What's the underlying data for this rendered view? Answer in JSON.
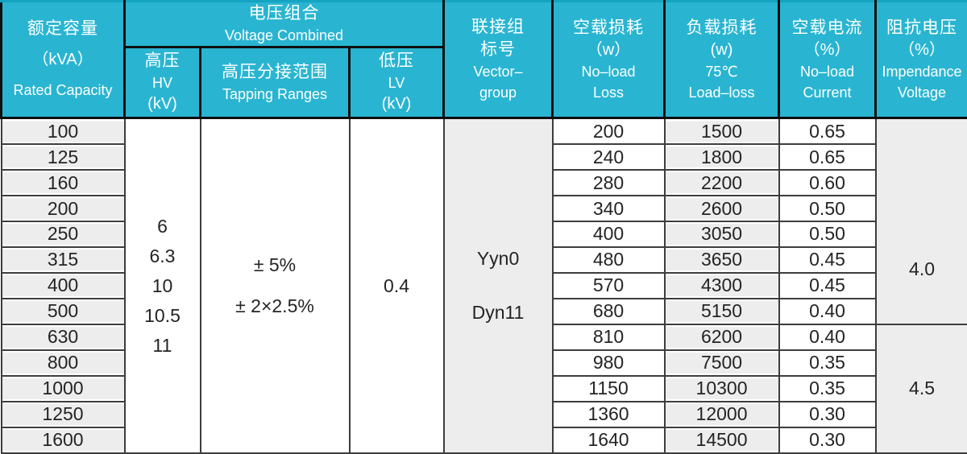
{
  "table": {
    "headers": {
      "rated_capacity": {
        "zh": "额定容量",
        "unit": "（kVA）",
        "en": "Rated Capacity"
      },
      "voltage_combined": {
        "zh": "电压组合",
        "en": "Voltage Combined"
      },
      "hv": {
        "zh": "高压",
        "en": "HV",
        "unit": "(kV)"
      },
      "tapping": {
        "zh": "高压分接范围",
        "en": "Tapping Ranges"
      },
      "lv": {
        "zh": "低压",
        "en": "LV",
        "unit": "(kV)"
      },
      "vector_group": {
        "zh1": "联接组",
        "zh2": "标号",
        "en1": "Vector–",
        "en2": "group"
      },
      "no_load_loss": {
        "zh": "空载损耗",
        "unit": "（w）",
        "en1": "No–load",
        "en2": "Loss"
      },
      "load_loss": {
        "zh": "负载损耗",
        "unit": "(w)",
        "temp": "75℃",
        "en": "Load–loss"
      },
      "no_load_current": {
        "zh": "空载电流",
        "unit": "（%）",
        "en1": "No–load",
        "en2": "Current"
      },
      "impedance_voltage": {
        "zh": "阻抗电压",
        "unit": "（%）",
        "en1": "Impendance",
        "en2": "Voltage"
      }
    },
    "merged": {
      "hv_values": [
        "6",
        "6.3",
        "10",
        "10.5",
        "11"
      ],
      "tapping_values": [
        "± 5%",
        "± 2×2.5%"
      ],
      "lv_value": "0.4",
      "vector_values": [
        "Yyn0",
        "Dyn11"
      ],
      "impedance": [
        {
          "value": "4.0",
          "rows": 8
        },
        {
          "value": "4.5",
          "rows": 5
        }
      ]
    },
    "rows": [
      {
        "capacity": "100",
        "no_load_loss": "200",
        "load_loss": "1500",
        "no_load_current": "0.65"
      },
      {
        "capacity": "125",
        "no_load_loss": "240",
        "load_loss": "1800",
        "no_load_current": "0.65"
      },
      {
        "capacity": "160",
        "no_load_loss": "280",
        "load_loss": "2200",
        "no_load_current": "0.60"
      },
      {
        "capacity": "200",
        "no_load_loss": "340",
        "load_loss": "2600",
        "no_load_current": "0.50"
      },
      {
        "capacity": "250",
        "no_load_loss": "400",
        "load_loss": "3050",
        "no_load_current": "0.50"
      },
      {
        "capacity": "315",
        "no_load_loss": "480",
        "load_loss": "3650",
        "no_load_current": "0.45"
      },
      {
        "capacity": "400",
        "no_load_loss": "570",
        "load_loss": "4300",
        "no_load_current": "0.45"
      },
      {
        "capacity": "500",
        "no_load_loss": "680",
        "load_loss": "5150",
        "no_load_current": "0.40"
      },
      {
        "capacity": "630",
        "no_load_loss": "810",
        "load_loss": "6200",
        "no_load_current": "0.40"
      },
      {
        "capacity": "800",
        "no_load_loss": "980",
        "load_loss": "7500",
        "no_load_current": "0.35"
      },
      {
        "capacity": "1000",
        "no_load_loss": "1150",
        "load_loss": "10300",
        "no_load_current": "0.35"
      },
      {
        "capacity": "1250",
        "no_load_loss": "1360",
        "load_loss": "12000",
        "no_load_current": "0.30"
      },
      {
        "capacity": "1600",
        "no_load_loss": "1640",
        "load_loss": "14500",
        "no_load_current": "0.30"
      }
    ],
    "colors": {
      "header_bg": "#29b5d1",
      "header_text": "#ffffff",
      "cell_gray": "#ededed",
      "border_dark": "#3d3d3d"
    }
  }
}
